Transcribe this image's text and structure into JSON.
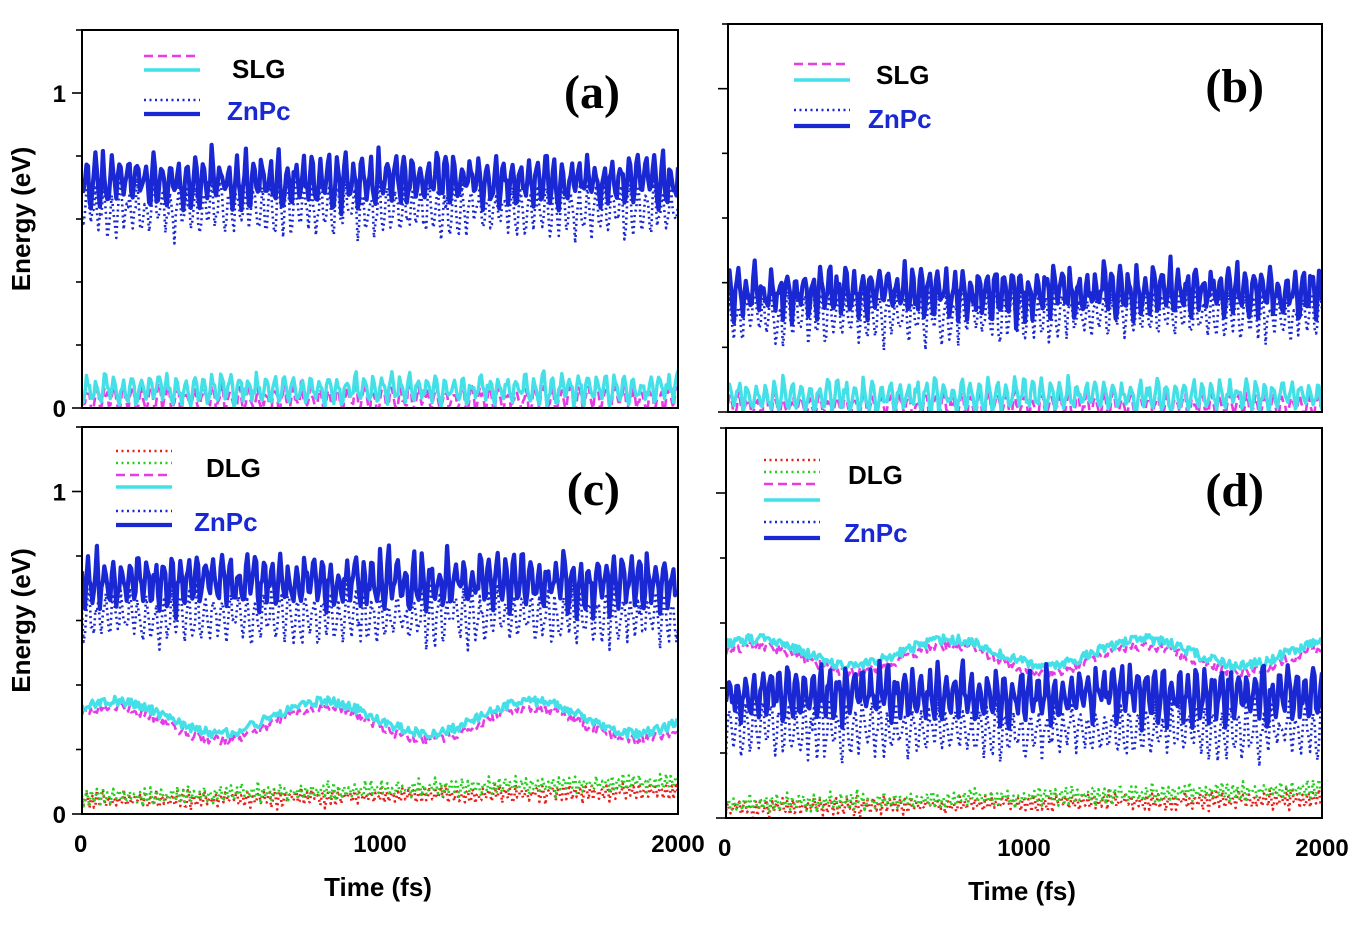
{
  "chart_data": [
    {
      "type": "line",
      "panel_label": "(a)",
      "ylabel": "Energy (eV)",
      "xlabel": "",
      "xlim": [
        0,
        2000
      ],
      "ylim": [
        0,
        1.2
      ],
      "x_ticks": [
        "0",
        "1000",
        "2000"
      ],
      "x_tick_labels_shown": false,
      "y_tick_labels": [
        {
          "value": 0,
          "label": "0"
        },
        {
          "value": 1,
          "label": "1"
        }
      ],
      "legend": {
        "placement": "top-left",
        "groups": [
          {
            "label": "SLG",
            "color": "#000000"
          },
          {
            "label": "ZnPc",
            "color": "#1a28d4"
          }
        ]
      },
      "series": [
        {
          "color": "#e63ce6",
          "style": "dashed",
          "mean": 0.03,
          "amplitude": 0.035,
          "period": 30,
          "drift": 0.0
        },
        {
          "color": "#44e0e8",
          "style": "solid",
          "mean": 0.06,
          "amplitude": 0.035,
          "period": 30,
          "drift": 0.0
        },
        {
          "color": "#1a28d4",
          "style": "dotted",
          "mean": 0.63,
          "amplitude": 0.06,
          "period": 28,
          "drift": 0.0
        },
        {
          "color": "#1a28d4",
          "style": "thick",
          "mean": 0.72,
          "amplitude": 0.06,
          "period": 28,
          "drift": 0.0
        }
      ]
    },
    {
      "type": "line",
      "panel_label": "(b)",
      "ylabel": "",
      "xlabel": "",
      "xlim": [
        0,
        2000
      ],
      "ylim": [
        0,
        1.2
      ],
      "x_ticks": [
        "0",
        "1000",
        "2000"
      ],
      "x_tick_labels_shown": false,
      "y_tick_labels": [],
      "legend": {
        "placement": "top-left",
        "groups": [
          {
            "label": "SLG",
            "color": "#000000"
          },
          {
            "label": "ZnPc",
            "color": "#1a28d4"
          }
        ]
      },
      "series": [
        {
          "color": "#e63ce6",
          "style": "dashed",
          "mean": 0.02,
          "amplitude": 0.03,
          "period": 30,
          "drift": 0.0
        },
        {
          "color": "#44e0e8",
          "style": "solid",
          "mean": 0.05,
          "amplitude": 0.035,
          "period": 30,
          "drift": 0.0
        },
        {
          "color": "#1a28d4",
          "style": "dotted",
          "mean": 0.3,
          "amplitude": 0.06,
          "period": 28,
          "drift": 0.0
        },
        {
          "color": "#1a28d4",
          "style": "thick",
          "mean": 0.37,
          "amplitude": 0.06,
          "period": 28,
          "drift": 0.0
        }
      ]
    },
    {
      "type": "line",
      "panel_label": "(c)",
      "ylabel": "Energy (eV)",
      "xlabel": "Time (fs)",
      "xlim": [
        0,
        2000
      ],
      "ylim": [
        0,
        1.2
      ],
      "x_ticks": [
        "0",
        "1000",
        "2000"
      ],
      "x_tick_labels_shown": true,
      "y_tick_labels": [
        {
          "value": 0,
          "label": "0"
        },
        {
          "value": 1,
          "label": "1"
        }
      ],
      "legend": {
        "placement": "top-left",
        "groups": [
          {
            "label": "DLG",
            "color": "#000000"
          },
          {
            "label": "ZnPc",
            "color": "#1a28d4"
          }
        ]
      },
      "series": [
        {
          "color": "#e8201a",
          "style": "dotted",
          "mean": 0.04,
          "amplitude": 0.02,
          "period": 18,
          "drift": 0.03
        },
        {
          "color": "#22d11c",
          "style": "dotted",
          "mean": 0.05,
          "amplitude": 0.02,
          "period": 18,
          "drift": 0.05
        },
        {
          "color": "#e63ce6",
          "style": "dashed",
          "mean": 0.28,
          "amplitude": 0.05,
          "period": 700,
          "drift": 0.0
        },
        {
          "color": "#44e0e8",
          "style": "solid",
          "mean": 0.3,
          "amplitude": 0.05,
          "period": 700,
          "drift": 0.0
        },
        {
          "color": "#1a28d4",
          "style": "dotted",
          "mean": 0.61,
          "amplitude": 0.06,
          "period": 28,
          "drift": 0.0
        },
        {
          "color": "#1a28d4",
          "style": "thick",
          "mean": 0.72,
          "amplitude": 0.06,
          "period": 28,
          "drift": 0.0
        }
      ]
    },
    {
      "type": "line",
      "panel_label": "(d)",
      "ylabel": "",
      "xlabel": "Time (fs)",
      "xlim": [
        0,
        2000
      ],
      "ylim": [
        0,
        1.2
      ],
      "x_ticks": [
        "0",
        "1000",
        "2000"
      ],
      "x_tick_labels_shown": true,
      "y_tick_labels": [],
      "legend": {
        "placement": "top-left",
        "groups": [
          {
            "label": "DLG",
            "color": "#000000"
          },
          {
            "label": "ZnPc",
            "color": "#1a28d4"
          }
        ]
      },
      "series": [
        {
          "color": "#e8201a",
          "style": "dotted",
          "mean": 0.03,
          "amplitude": 0.02,
          "period": 18,
          "drift": 0.03
        },
        {
          "color": "#22d11c",
          "style": "dotted",
          "mean": 0.04,
          "amplitude": 0.02,
          "period": 18,
          "drift": 0.05
        },
        {
          "color": "#e63ce6",
          "style": "dashed",
          "mean": 0.49,
          "amplitude": 0.04,
          "period": 650,
          "drift": 0.0
        },
        {
          "color": "#44e0e8",
          "style": "solid",
          "mean": 0.51,
          "amplitude": 0.04,
          "period": 650,
          "drift": 0.0
        },
        {
          "color": "#1a28d4",
          "style": "dotted",
          "mean": 0.27,
          "amplitude": 0.06,
          "period": 28,
          "drift": 0.0
        },
        {
          "color": "#1a28d4",
          "style": "thick",
          "mean": 0.38,
          "amplitude": 0.06,
          "period": 28,
          "drift": 0.0
        }
      ]
    }
  ]
}
